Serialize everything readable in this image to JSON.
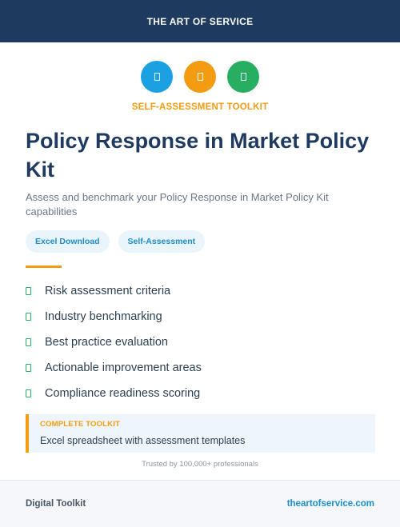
{
  "header": {
    "brand": "THE ART OF SERVICE",
    "color": "#1e3a5f"
  },
  "icons": [
    {
      "name": "document-icon",
      "color": "#1ba1e2"
    },
    {
      "name": "document-icon",
      "color": "#f39c12"
    },
    {
      "name": "document-icon",
      "color": "#27ae60"
    }
  ],
  "eyebrow": "SELF-ASSESSMENT TOOLKIT",
  "title": "Policy Response in Market Policy Kit",
  "subtitle": "Assess and benchmark your Policy Response in Market Policy Kit capabilities",
  "tags": [
    "Excel Download",
    "Self-Assessment"
  ],
  "features": [
    "Risk assessment criteria",
    "Industry benchmarking",
    "Best practice evaluation",
    "Actionable improvement areas",
    "Compliance readiness scoring"
  ],
  "callout": {
    "label": "COMPLETE TOOLKIT",
    "text": "Excel spreadsheet with assessment templates"
  },
  "trusted": "Trusted by 100,000+ professionals",
  "footer": {
    "left": "Digital Toolkit",
    "link": "theartofservice.com"
  },
  "colors": {
    "accent": "#f39c12",
    "link": "#1b8ecb",
    "check": "#27ae60"
  }
}
